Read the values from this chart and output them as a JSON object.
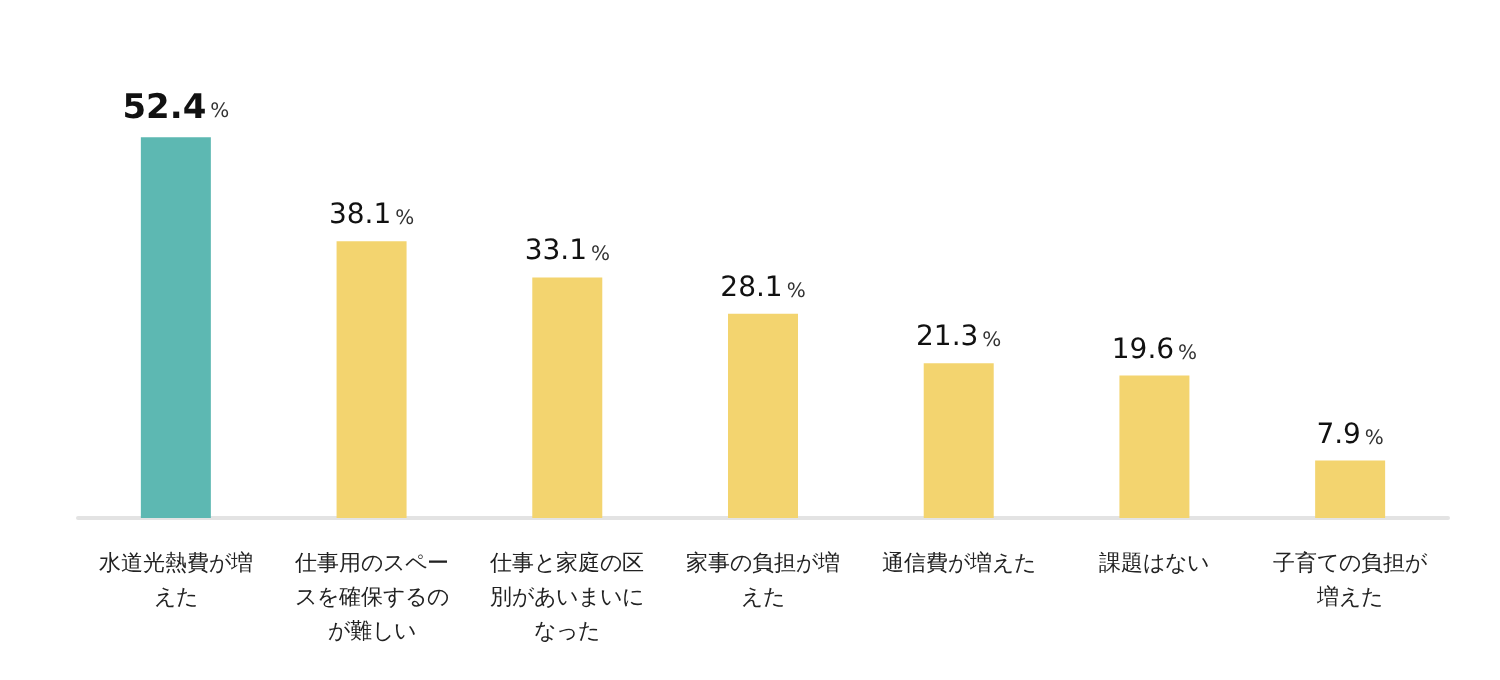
{
  "chart_data": {
    "type": "bar",
    "categories": [
      "水道光熱費が増えた",
      "仕事用のスペースを確保するのが難しい",
      "仕事と家庭の区別があいまいになった",
      "家事の負担が増えた",
      "通信費が増えた",
      "課題はない",
      "子育ての負担が増えた"
    ],
    "values": [
      52.4,
      38.1,
      33.1,
      28.1,
      21.3,
      19.6,
      7.9
    ],
    "colors": [
      "#5db8b2",
      "#f3d46f",
      "#f3d46f",
      "#f3d46f",
      "#f3d46f",
      "#f3d46f",
      "#f3d46f"
    ],
    "value_labels": [
      "52.4%",
      "38.1%",
      "33.1%",
      "28.1%",
      "21.3%",
      "19.6%",
      "7.9%"
    ]
  }
}
